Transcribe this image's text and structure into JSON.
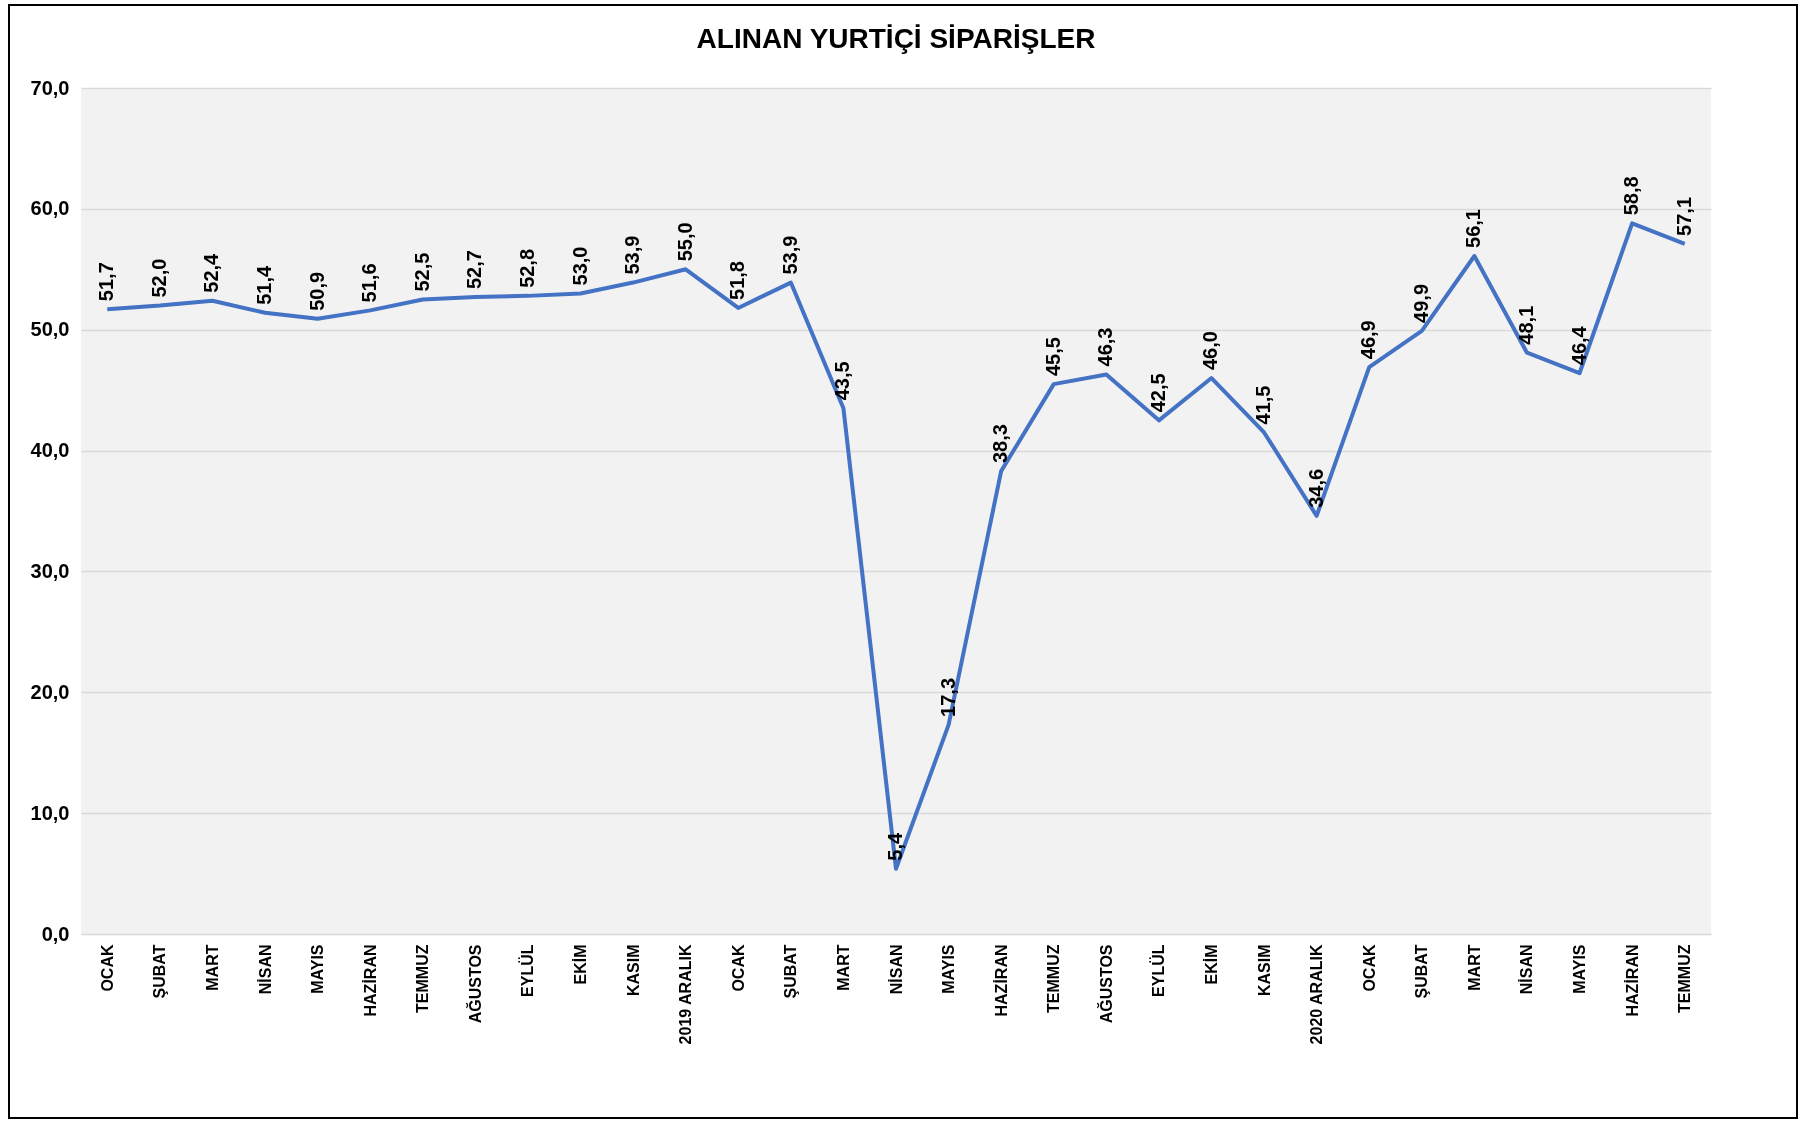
{
  "chart_data": {
    "type": "line",
    "title": "ALINAN YURTİÇİ SİPARİŞLER",
    "categories": [
      "OCAK",
      "ŞUBAT",
      "MART",
      "NİSAN",
      "MAYIS",
      "HAZİRAN",
      "TEMMUZ",
      "AĞUSTOS",
      "EYLÜL",
      "EKİM",
      "KASIM",
      "2019 ARALIK",
      "OCAK",
      "ŞUBAT",
      "MART",
      "NİSAN",
      "MAYIS",
      "HAZİRAN",
      "TEMMUZ",
      "AĞUSTOS",
      "EYLÜL",
      "EKİM",
      "KASIM",
      "2020 ARALIK",
      "OCAK",
      "ŞUBAT",
      "MART",
      "NİSAN",
      "MAYIS",
      "HAZİRAN",
      "TEMMUZ"
    ],
    "series": [
      {
        "color": "#4472c4",
        "values": [
          51.7,
          52.0,
          52.4,
          51.4,
          50.9,
          51.6,
          52.5,
          52.7,
          52.8,
          53.0,
          53.9,
          55.0,
          51.8,
          53.9,
          43.5,
          5.4,
          17.3,
          38.3,
          45.5,
          46.3,
          42.5,
          46.0,
          41.5,
          34.6,
          46.9,
          49.9,
          56.1,
          48.1,
          46.4,
          58.8,
          57.1
        ],
        "value_labels": [
          "51,7",
          "52,0",
          "52,4",
          "51,4",
          "50,9",
          "51,6",
          "52,5",
          "52,7",
          "52,8",
          "53,0",
          "53,9",
          "55,0",
          "51,8",
          "53,9",
          "43,5",
          "5,4",
          "17,3",
          "38,3",
          "45,5",
          "46,3",
          "42,5",
          "46,0",
          "41,5",
          "34,6",
          "46,9",
          "49,9",
          "56,1",
          "48,1",
          "46,4",
          "58,8",
          "57,1"
        ]
      }
    ],
    "ylim": [
      0,
      70
    ],
    "yticks": [
      {
        "value": 0,
        "label": "0,0"
      },
      {
        "value": 10,
        "label": "10,0"
      },
      {
        "value": 20,
        "label": "20,0"
      },
      {
        "value": 30,
        "label": "30,0"
      },
      {
        "value": 40,
        "label": "40,0"
      },
      {
        "value": 50,
        "label": "50,0"
      },
      {
        "value": 60,
        "label": "60,0"
      },
      {
        "value": 70,
        "label": "70,0"
      }
    ],
    "grid": "y",
    "marker": "none",
    "line_style": "solid"
  }
}
